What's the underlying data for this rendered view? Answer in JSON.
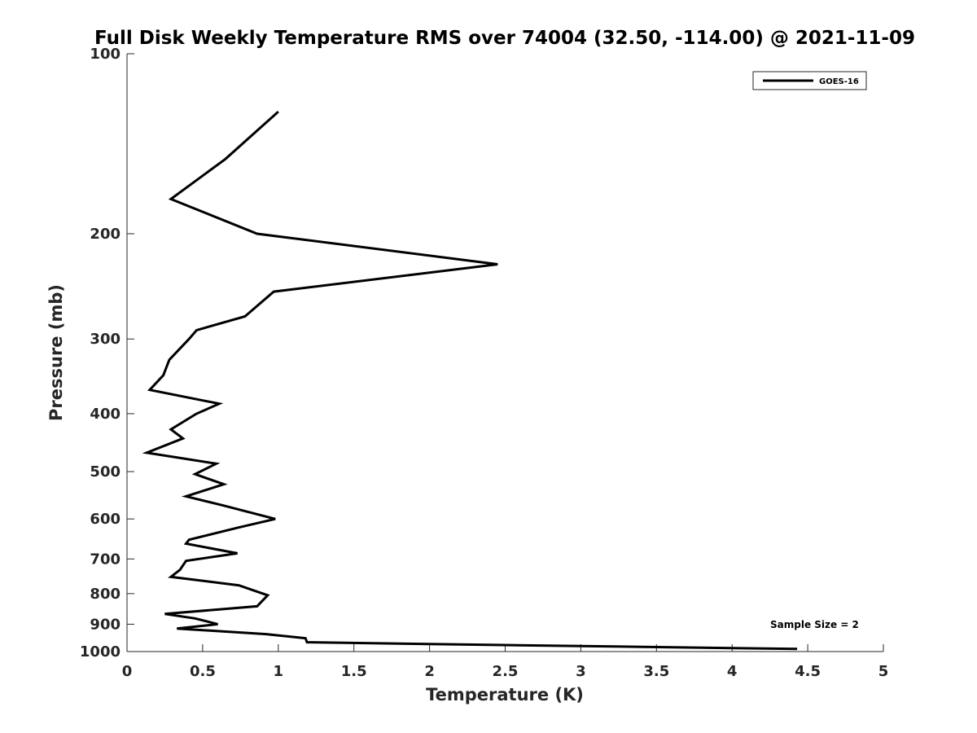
{
  "chart_data": {
    "type": "line",
    "title": "Full Disk Weekly Temperature RMS over 74004 (32.50, -114.00) @ 2021-11-09",
    "xlabel": "Temperature (K)",
    "ylabel": "Pressure (mb)",
    "xlim": [
      0,
      5
    ],
    "ylim": [
      100,
      1000
    ],
    "y_scale": "log",
    "y_reversed": true,
    "x_ticks": [
      0,
      0.5,
      1,
      1.5,
      2,
      2.5,
      3,
      3.5,
      4,
      4.5,
      5
    ],
    "x_tick_labels": [
      "0",
      "0.5",
      "1",
      "1.5",
      "2",
      "2.5",
      "3",
      "3.5",
      "4",
      "4.5",
      "5"
    ],
    "y_ticks": [
      100,
      200,
      300,
      400,
      500,
      600,
      700,
      800,
      900,
      1000
    ],
    "y_tick_labels": [
      "100",
      "200",
      "300",
      "400",
      "500",
      "600",
      "700",
      "800",
      "900",
      "1000"
    ],
    "grid": false,
    "legend_position": "top-right",
    "annotation": "Sample Size = 2",
    "series": [
      {
        "name": "GOES-16",
        "color": "#000000",
        "x": [
          1.0,
          0.65,
          0.29,
          0.86,
          2.45,
          0.97,
          0.78,
          0.46,
          0.41,
          0.28,
          0.24,
          0.15,
          0.61,
          0.46,
          0.29,
          0.37,
          0.13,
          0.59,
          0.45,
          0.64,
          0.39,
          0.64,
          0.98,
          0.74,
          0.41,
          0.39,
          0.73,
          0.39,
          0.35,
          0.29,
          0.74,
          0.93,
          0.9,
          0.86,
          0.25,
          0.45,
          0.6,
          0.33,
          0.92,
          1.18,
          1.19,
          2.44,
          4.43
        ],
        "y": [
          125,
          150,
          175,
          200,
          225,
          250,
          275,
          290,
          300,
          325,
          345,
          365,
          385,
          400,
          425,
          440,
          465,
          485,
          505,
          525,
          550,
          570,
          600,
          620,
          650,
          660,
          685,
          705,
          730,
          750,
          775,
          805,
          820,
          840,
          865,
          880,
          900,
          915,
          935,
          950,
          965,
          975,
          990
        ]
      }
    ]
  }
}
